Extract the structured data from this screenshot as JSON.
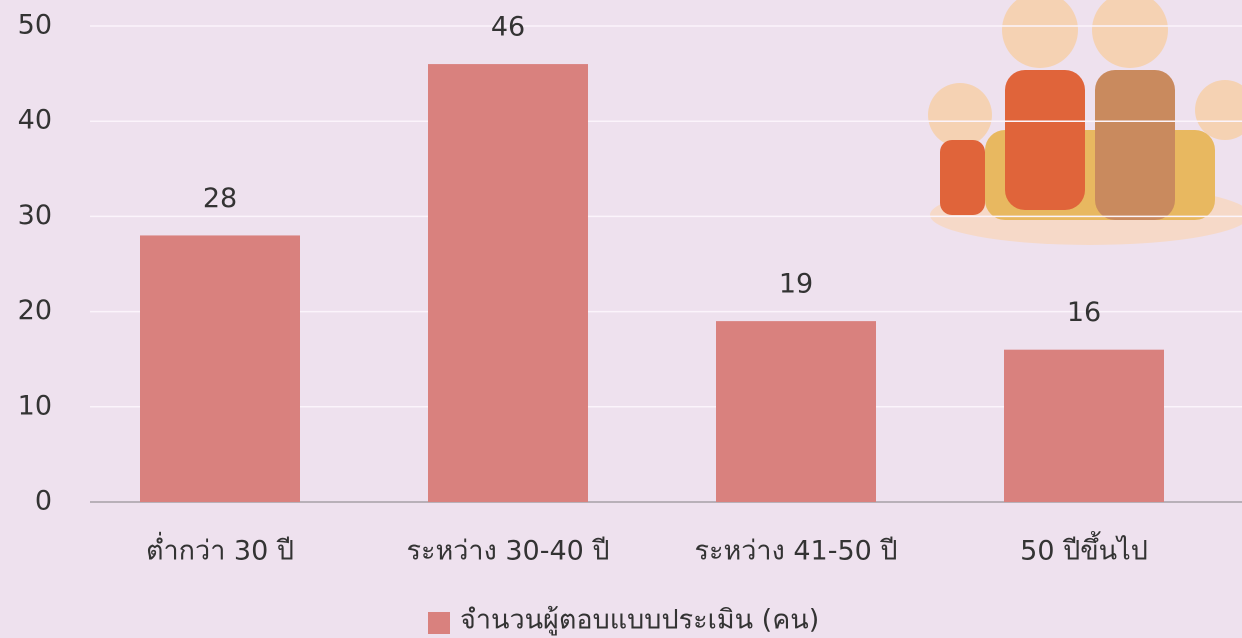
{
  "chart_data": {
    "type": "bar",
    "categories": [
      "ต่ำกว่า 30 ปี",
      "ระหว่าง 30-40 ปี",
      "ระหว่าง 41-50 ปี",
      "50 ปีขึ้นไป"
    ],
    "series": [
      {
        "name": "จำนวนผู้ตอบแบบประเมิน (คน)",
        "color": "#d9817e",
        "values": [
          28,
          46,
          19,
          16
        ]
      }
    ],
    "ylim": [
      0,
      50
    ],
    "yticks": [
      0,
      10,
      20,
      30,
      40,
      50
    ],
    "grid": true,
    "legend": "bottom"
  }
}
